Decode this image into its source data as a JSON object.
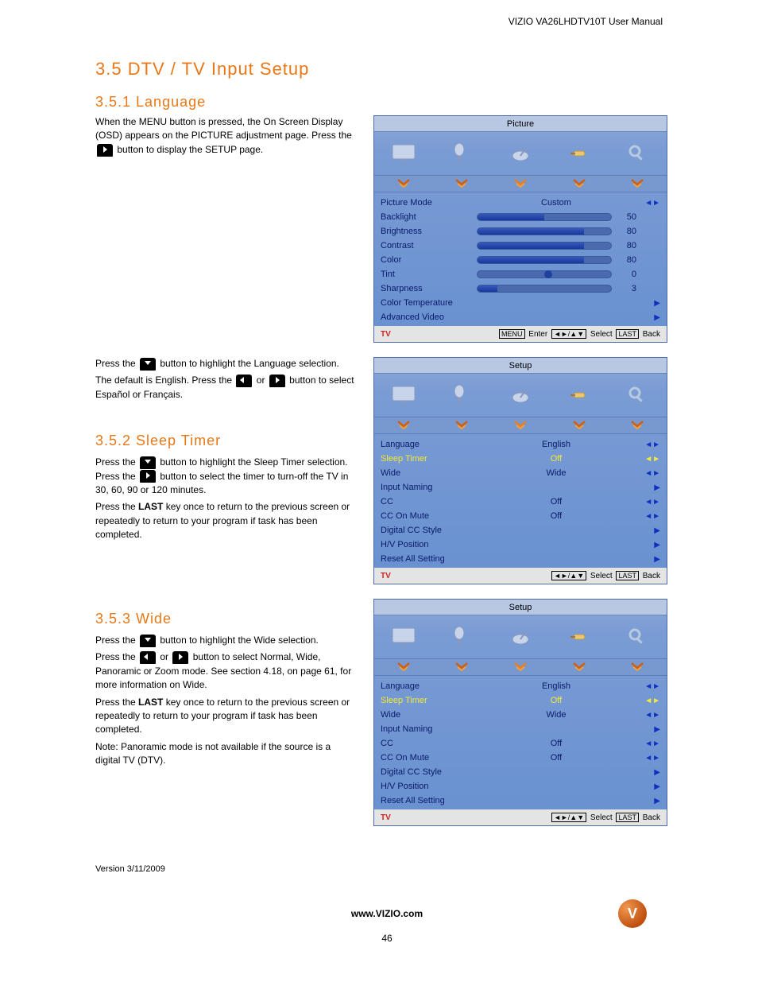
{
  "header": {
    "product": "VIZIO VA26LHDTV10T User Manual"
  },
  "title": "3.5 DTV / TV Input Setup",
  "sections": {
    "lang": {
      "heading": "3.5.1 Language",
      "p1a": "When the MENU button is pressed, the On Screen Display (OSD) appears on the PICTURE adjustment page. Press the ",
      "p1b": " button to display the SETUP page.",
      "p2a": "Press the ",
      "p2b": " button to highlight the Language selection.",
      "p3": "The default is English. Press the ",
      "p3or": " or ",
      "p3b": " button to select Español or Français."
    },
    "sleep": {
      "heading": "3.5.2 Sleep Timer",
      "p1a": "Press the ",
      "p1b": " button to highlight the Sleep Timer selection. Press the ",
      "p1c": " button to select the timer to turn-off the TV in 30, 60, 90 or 120 minutes.",
      "p2a": "Press the ",
      "p2b": "LAST",
      "p2c": " key once to return to the previous screen or repeatedly to return to your program if task has been completed."
    },
    "wide": {
      "heading": "3.5.3 Wide",
      "p1a": "Press the ",
      "p1b": " button to highlight the Wide selection.",
      "p2a": "Press the ",
      "p2or": " or ",
      "p2b": " button to select Normal, Wide, Panoramic or Zoom mode. See section 4.18, on page 61, for more information on Wide.",
      "p3a": "Press the ",
      "p3b": "LAST",
      "p3c": " key once to return to the previous screen or repeatedly to return to your program if task has been completed.",
      "note": "Note: Panoramic mode is not available if the source is a digital TV (DTV)."
    }
  },
  "osd_picture": {
    "title": "Picture",
    "rows": [
      {
        "label": "Picture Mode",
        "value_text": "Custom",
        "type": "text",
        "ind": "lr"
      },
      {
        "label": "Backlight",
        "value_num": 50,
        "type": "slider",
        "fill_pct": 50
      },
      {
        "label": "Brightness",
        "value_num": 80,
        "type": "slider",
        "fill_pct": 80
      },
      {
        "label": "Contrast",
        "value_num": 80,
        "type": "slider",
        "fill_pct": 80
      },
      {
        "label": "Color",
        "value_num": 80,
        "type": "slider",
        "fill_pct": 80
      },
      {
        "label": "Tint",
        "value_num": 0,
        "type": "tint",
        "knob_pct": 50
      },
      {
        "label": "Sharpness",
        "value_num": 3,
        "type": "slider",
        "fill_pct": 15
      },
      {
        "label": "Color Temperature",
        "type": "sub",
        "ind": "play"
      },
      {
        "label": "Advanced Video",
        "type": "sub",
        "ind": "play"
      }
    ],
    "footer": {
      "src": "TV",
      "hints": [
        "MENU",
        "Enter",
        "◄►/▲▼",
        "Select",
        "LAST",
        "Back"
      ]
    }
  },
  "osd_setup1": {
    "title": "Setup",
    "rows": [
      {
        "label": "Language",
        "value_text": "English",
        "ind": "lr"
      },
      {
        "label": "Sleep Timer",
        "value_text": "Off",
        "ind": "lr",
        "selected": true
      },
      {
        "label": "Wide",
        "value_text": "Wide",
        "ind": "lr"
      },
      {
        "label": "Input Naming",
        "ind": "play"
      },
      {
        "label": "CC",
        "value_text": "Off",
        "ind": "lr"
      },
      {
        "label": "CC On Mute",
        "value_text": "Off",
        "ind": "lr"
      },
      {
        "label": "Digital CC Style",
        "ind": "play"
      },
      {
        "label": "H/V Position",
        "ind": "play"
      },
      {
        "label": "Reset All Setting",
        "ind": "play"
      }
    ],
    "footer": {
      "src": "TV",
      "hints": [
        "◄►/▲▼",
        "Select",
        "LAST",
        "Back"
      ]
    }
  },
  "osd_setup2": {
    "title": "Setup",
    "rows": [
      {
        "label": "Language",
        "value_text": "English",
        "ind": "lr"
      },
      {
        "label": "Sleep Timer",
        "value_text": "Off",
        "ind": "lr",
        "selected": true
      },
      {
        "label": "Wide",
        "value_text": "Wide",
        "ind": "lr"
      },
      {
        "label": "Input Naming",
        "ind": "play"
      },
      {
        "label": "CC",
        "value_text": "Off",
        "ind": "lr"
      },
      {
        "label": "CC On Mute",
        "value_text": "Off",
        "ind": "lr"
      },
      {
        "label": "Digital CC Style",
        "ind": "play"
      },
      {
        "label": "H/V Position",
        "ind": "play"
      },
      {
        "label": "Reset All Setting",
        "ind": "play"
      }
    ],
    "footer": {
      "src": "TV",
      "hints": [
        "◄►/▲▼",
        "Select",
        "LAST",
        "Back"
      ]
    }
  },
  "colors": {
    "heading": "#e87817",
    "osd_bg_top": "#8aa6d8",
    "osd_label": "#0a1a6a",
    "osd_selected": "#f5e838",
    "tv_src": "#d02020"
  },
  "footer": {
    "version": "Version 3/11/2009",
    "url": "www.VIZIO.com",
    "page": "46"
  }
}
